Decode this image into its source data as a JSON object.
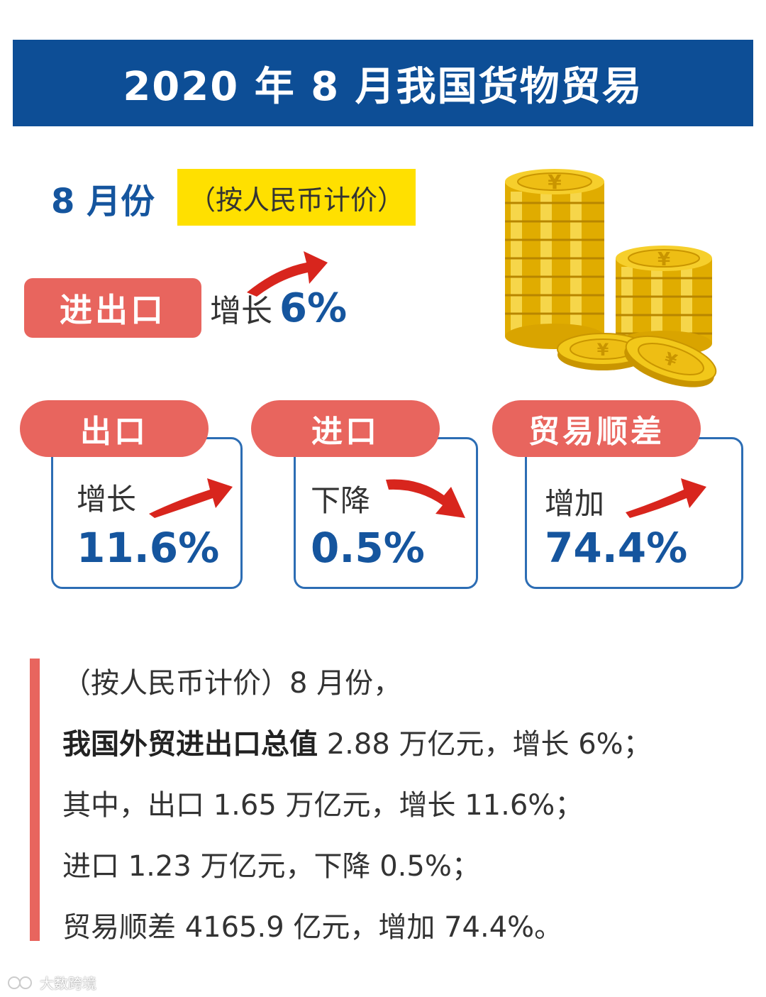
{
  "header": {
    "title": "2020 年 8 月我国货物贸易"
  },
  "period": {
    "month_label": "8 月份",
    "currency_note": "（按人民币计价）"
  },
  "trade_total": {
    "label": "进出口",
    "change_label": "增长",
    "change_value": "6%"
  },
  "cards": [
    {
      "tab": "出口",
      "change_label": "增长",
      "value": "11.6%",
      "direction": "up"
    },
    {
      "tab": "进口",
      "change_label": "下降",
      "value": "0.5%",
      "direction": "down"
    },
    {
      "tab": "贸易顺差",
      "change_label": "增加",
      "value": "74.4%",
      "direction": "up"
    }
  ],
  "summary": {
    "line1": "（按人民币计价）8 月份，",
    "line2_bold": "我国外贸进出口总值",
    "line2_rest": " 2.88 万亿元，增长 6%；",
    "line3": "其中，出口 1.65 万亿元，增长 11.6%；",
    "line4": "进口 1.23 万亿元，下降 0.5%；",
    "line5": "贸易顺差 4165.9 亿元，增加 74.4%。"
  },
  "watermark": {
    "text": "大数跨境"
  },
  "colors": {
    "banner": "#0d4e96",
    "accent_red": "#e8655e",
    "value_blue": "#15559e",
    "highlight_yellow": "#ffe000",
    "coin_gold": "#e8b400"
  },
  "icons": [
    "yuan-coin-icon",
    "up-arrow-icon",
    "down-arrow-icon"
  ]
}
